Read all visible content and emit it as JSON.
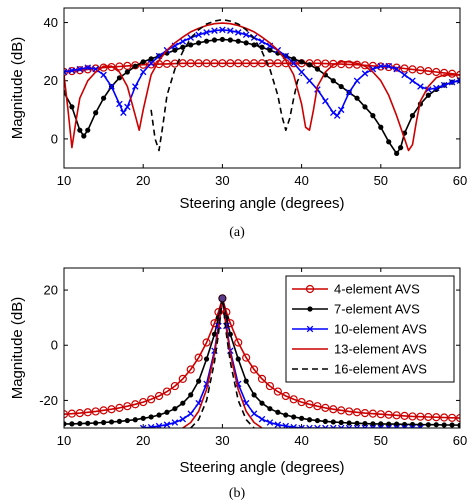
{
  "chart_data": [
    {
      "type": "line",
      "caption": "(a)",
      "xlabel": "Steering angle (degrees)",
      "ylabel": "Magnitude (dB)",
      "xlim": [
        10,
        60
      ],
      "ylim": [
        -10,
        45
      ],
      "xticks": [
        10,
        20,
        30,
        40,
        50,
        60
      ],
      "yticks": [
        0,
        20,
        40
      ],
      "grid": false,
      "series": [
        {
          "color": "#cc0000",
          "dash": "",
          "marker": "circle",
          "x": [
            10,
            11,
            12,
            13,
            14,
            15,
            16,
            17,
            18,
            19,
            20,
            21,
            22,
            23,
            24,
            25,
            26,
            27,
            28,
            29,
            30,
            31,
            32,
            33,
            34,
            35,
            36,
            37,
            38,
            39,
            40,
            41,
            42,
            43,
            44,
            45,
            46,
            47,
            48,
            49,
            50,
            51,
            52,
            53,
            54,
            55,
            56,
            57,
            58,
            59,
            60
          ],
          "y": [
            23,
            23.3,
            23.6,
            23.9,
            24.2,
            24.5,
            24.7,
            24.9,
            25.1,
            25.3,
            25.5,
            25.6,
            25.7,
            25.8,
            25.9,
            26,
            26,
            26,
            26,
            26,
            26,
            26,
            26,
            26,
            26,
            26,
            26,
            26,
            26,
            26,
            26,
            26,
            26,
            25.9,
            25.8,
            25.7,
            25.6,
            25.5,
            25.3,
            25.1,
            24.9,
            24.7,
            24.5,
            24.2,
            23.9,
            23.6,
            23.3,
            23,
            22.7,
            22.4,
            22
          ]
        },
        {
          "color": "#000000",
          "dash": "",
          "marker": "dot",
          "x": [
            10,
            11,
            12,
            12.5,
            13,
            14,
            15,
            16,
            17,
            18,
            19,
            20,
            21,
            22,
            23,
            24,
            25,
            26,
            27,
            28,
            29,
            30,
            31,
            32,
            33,
            34,
            35,
            36,
            37,
            38,
            39,
            40,
            41,
            42,
            43,
            44,
            45,
            46,
            47,
            48,
            49,
            50,
            51,
            52,
            52.5,
            53,
            54,
            55,
            56,
            57,
            58,
            59,
            60
          ],
          "y": [
            16,
            11,
            3,
            1,
            3,
            9,
            14,
            18,
            21,
            23,
            25,
            26.5,
            27.5,
            28.5,
            29.5,
            30.5,
            31.5,
            32.3,
            33,
            33.6,
            34,
            34.2,
            34,
            33.6,
            33,
            32.3,
            31.5,
            30.5,
            29.5,
            28.5,
            27.5,
            26.5,
            25.5,
            24,
            22,
            20,
            18,
            16,
            14,
            11,
            8,
            4,
            -1,
            -5,
            -3,
            2,
            8,
            12,
            15,
            17,
            18.5,
            19.5,
            20
          ]
        },
        {
          "color": "#0000ff",
          "dash": "",
          "marker": "cross",
          "x": [
            10,
            11,
            12,
            13,
            14,
            15,
            16,
            17,
            17.5,
            18,
            19,
            20,
            21,
            22,
            23,
            24,
            25,
            26,
            27,
            28,
            29,
            30,
            31,
            32,
            33,
            34,
            35,
            36,
            37,
            38,
            39,
            40,
            41,
            42,
            43,
            44,
            44.5,
            45,
            46,
            47,
            48,
            49,
            50,
            51,
            52,
            53,
            54,
            55,
            56,
            57,
            58,
            59,
            60
          ],
          "y": [
            23,
            23.5,
            24,
            24.5,
            24,
            22,
            18,
            12,
            9,
            11,
            18,
            23,
            26,
            28.5,
            30.5,
            32,
            33.5,
            34.8,
            35.8,
            36.6,
            37.2,
            37.5,
            37.2,
            36.6,
            35.8,
            34.8,
            33.5,
            32,
            30.5,
            28.5,
            26,
            23,
            20,
            17,
            13,
            9,
            8,
            10,
            16,
            20,
            22.5,
            24,
            25,
            25,
            24,
            22,
            20,
            18,
            17,
            17.5,
            18.5,
            19.5,
            20
          ]
        },
        {
          "color": "#cc0000",
          "dash": "",
          "marker": "none",
          "x": [
            10,
            10.5,
            11,
            11.5,
            12,
            13,
            14,
            15,
            16,
            17,
            18,
            19,
            19.5,
            20,
            21,
            22,
            23,
            24,
            25,
            26,
            27,
            28,
            29,
            30,
            31,
            32,
            33,
            34,
            35,
            36,
            37,
            38,
            39,
            40,
            40.5,
            41,
            41.5,
            42,
            43,
            44,
            45,
            46,
            47,
            48,
            49,
            50,
            51,
            52,
            53,
            53.5,
            54,
            54.5,
            55,
            56,
            57,
            58,
            59,
            60
          ],
          "y": [
            22,
            10,
            -3,
            6,
            14,
            20,
            23,
            25,
            25,
            23,
            18,
            8,
            3,
            10,
            22,
            27,
            30.5,
            33,
            35,
            36.8,
            38,
            39,
            39.6,
            39.8,
            39.6,
            39,
            38,
            36.8,
            35,
            33,
            30.5,
            27,
            22,
            12,
            4,
            3,
            10,
            18,
            23,
            25.5,
            26.5,
            26.5,
            26,
            25,
            23,
            20,
            15,
            8,
            0,
            -4,
            -2,
            6,
            13,
            18,
            21,
            22,
            22,
            22
          ]
        },
        {
          "color": "#000000",
          "dash": "6,4",
          "marker": "none",
          "x": [
            21,
            21.5,
            22,
            22.5,
            23,
            24,
            25,
            26,
            27,
            28,
            29,
            30,
            31,
            32,
            33,
            34,
            35,
            36,
            37,
            37.5,
            38,
            38.5,
            39,
            39.5,
            40
          ],
          "y": [
            10,
            0,
            -4,
            5,
            15,
            24,
            30,
            34.5,
            37.5,
            39.5,
            40.5,
            41,
            40.5,
            39.5,
            37.5,
            34.5,
            30,
            24,
            15,
            8,
            3,
            7,
            14,
            20,
            22
          ]
        }
      ]
    },
    {
      "type": "line",
      "caption": "(b)",
      "xlabel": "Steering angle (degrees)",
      "ylabel": "Magnitude (dB)",
      "xlim": [
        10,
        60
      ],
      "ylim": [
        -30,
        28
      ],
      "xticks": [
        10,
        20,
        30,
        40,
        50,
        60
      ],
      "yticks": [
        -20,
        0,
        20
      ],
      "grid": false,
      "legend": "top-right",
      "series": [
        {
          "name": "4-element AVS",
          "color": "#cc0000",
          "dash": "",
          "marker": "circle",
          "x": [
            10,
            11,
            12,
            13,
            14,
            15,
            16,
            17,
            18,
            19,
            20,
            21,
            22,
            23,
            24,
            25,
            26,
            27,
            28,
            29,
            29.5,
            30,
            30.5,
            31,
            32,
            33,
            34,
            35,
            36,
            37,
            38,
            39,
            40,
            41,
            42,
            43,
            44,
            45,
            46,
            47,
            48,
            49,
            50,
            51,
            52,
            53,
            54,
            55,
            56,
            57,
            58,
            59,
            60
          ],
          "y": [
            -25,
            -24.8,
            -24.6,
            -24.3,
            -24,
            -23.6,
            -23.2,
            -22.7,
            -22.1,
            -21.4,
            -20.6,
            -19.6,
            -18.4,
            -16.8,
            -14.8,
            -12.2,
            -8.8,
            -4.5,
            1,
            8,
            12,
            17,
            12,
            8,
            1,
            -4.5,
            -8.8,
            -12.2,
            -14.8,
            -16.8,
            -18.4,
            -19.6,
            -20.6,
            -21.4,
            -22.1,
            -22.7,
            -23.2,
            -23.6,
            -24,
            -24.3,
            -24.6,
            -24.8,
            -25,
            -25.2,
            -25.4,
            -25.6,
            -25.8,
            -25.9,
            -26,
            -26.1,
            -26.2,
            -26.3,
            -26.4
          ]
        },
        {
          "name": "7-element AVS",
          "color": "#000000",
          "dash": "",
          "marker": "dot",
          "x": [
            10,
            11,
            12,
            13,
            14,
            15,
            16,
            17,
            18,
            19,
            20,
            21,
            22,
            23,
            24,
            25,
            26,
            27,
            28,
            29,
            29.5,
            30,
            30.5,
            31,
            32,
            33,
            34,
            35,
            36,
            37,
            38,
            39,
            40,
            41,
            42,
            43,
            44,
            45,
            46,
            47,
            48,
            49,
            50,
            51,
            52,
            53,
            54,
            55,
            56,
            57,
            58,
            59,
            60
          ],
          "y": [
            -28.5,
            -28.5,
            -28.4,
            -28.3,
            -28.2,
            -28,
            -27.8,
            -27.6,
            -27.3,
            -27,
            -26.5,
            -26,
            -25.3,
            -24.3,
            -23,
            -21,
            -18,
            -13,
            -5,
            4,
            10,
            17,
            10,
            4,
            -5,
            -13,
            -18,
            -21,
            -23,
            -24.3,
            -25.3,
            -26,
            -26.5,
            -27,
            -27.3,
            -27.6,
            -27.8,
            -28,
            -28.2,
            -28.3,
            -28.4,
            -28.5,
            -28.5,
            -28.6,
            -28.6,
            -28.7,
            -28.7,
            -28.8,
            -28.8,
            -28.8,
            -28.9,
            -28.9,
            -29
          ]
        },
        {
          "name": "10-element AVS",
          "color": "#0000ff",
          "dash": "",
          "marker": "cross",
          "x": [
            20,
            21,
            22,
            23,
            24,
            25,
            26,
            27,
            28,
            29,
            29.5,
            30,
            30.5,
            31,
            32,
            33,
            34,
            35,
            36,
            37,
            38,
            39,
            40,
            41,
            42,
            43,
            44,
            45,
            46,
            47,
            48,
            49,
            50,
            51,
            52,
            53,
            54,
            55
          ],
          "y": [
            -30,
            -29.7,
            -29.3,
            -28.8,
            -28,
            -26.8,
            -24.8,
            -21,
            -14,
            -2,
            7,
            17,
            7,
            -2,
            -14,
            -21,
            -24.8,
            -26.8,
            -28,
            -28.8,
            -29.3,
            -29.7,
            -30,
            -30,
            -30,
            -30,
            -30,
            -30,
            -30,
            -30,
            -30,
            -30,
            -30,
            -30,
            -30,
            -30,
            -30,
            -30
          ]
        },
        {
          "name": "13-element AVS",
          "color": "#cc0000",
          "dash": "",
          "marker": "none",
          "x": [
            25,
            26,
            27,
            28,
            29,
            29.5,
            30,
            30.5,
            31,
            32,
            33,
            34,
            35
          ],
          "y": [
            -30,
            -28,
            -24,
            -16,
            -3,
            6,
            17,
            6,
            -3,
            -16,
            -24,
            -28,
            -30
          ]
        },
        {
          "name": "16-element AVS",
          "color": "#000000",
          "dash": "6,4",
          "marker": "none",
          "x": [
            26,
            27,
            28,
            29,
            29.5,
            30,
            30.5,
            31,
            32,
            33,
            34
          ],
          "y": [
            -30,
            -27,
            -20,
            -6,
            4,
            17,
            4,
            -6,
            -20,
            -27,
            -30
          ]
        }
      ]
    }
  ]
}
